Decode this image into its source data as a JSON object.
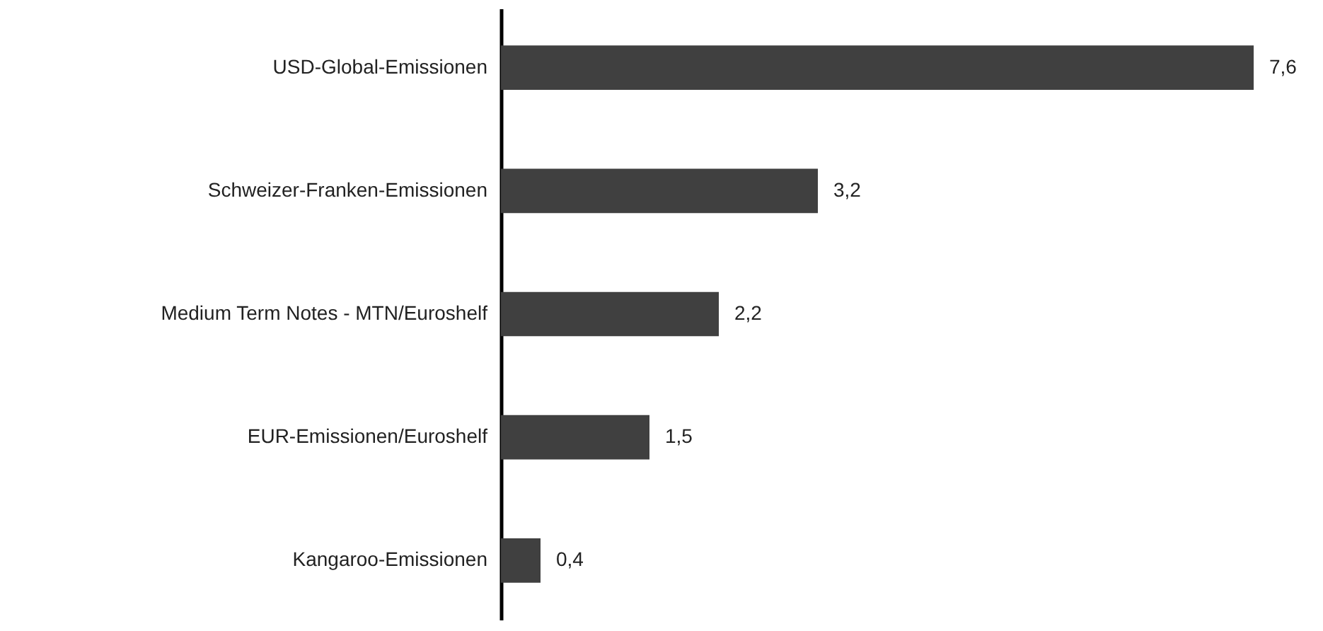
{
  "chart_data": {
    "type": "bar",
    "orientation": "horizontal",
    "categories": [
      "USD-Global-Emissionen",
      "Schweizer-Franken-Emissionen",
      "Medium Term Notes - MTN/Euroshelf",
      "EUR-Emissionen/Euroshelf",
      "Kangaroo-Emissionen"
    ],
    "values": [
      7.6,
      3.2,
      2.2,
      1.5,
      0.4
    ],
    "value_labels": [
      "7,6",
      "3,2",
      "2,2",
      "1,5",
      "0,4"
    ],
    "color": "#404040"
  }
}
